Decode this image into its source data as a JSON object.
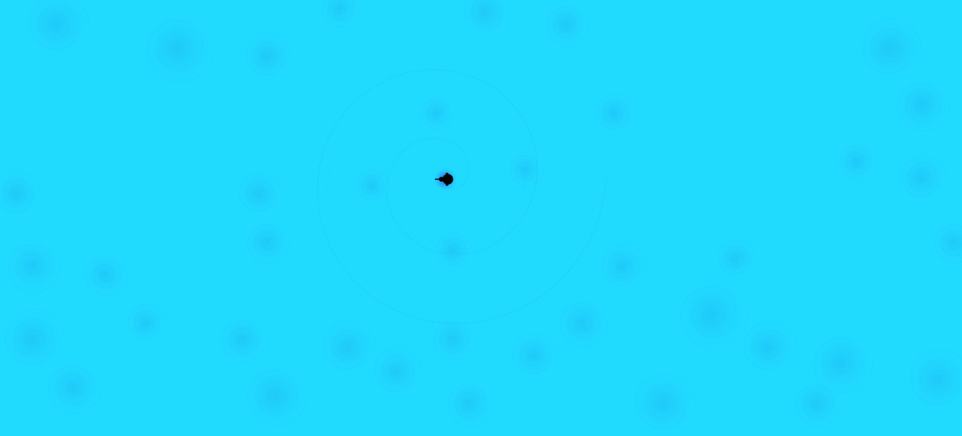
{
  "view": {
    "kind": "mandelbrot-zoom",
    "colors": {
      "background": "#21dbff",
      "filament": "#2ec8f6",
      "filament_dark": "#27bff0",
      "set_interior": "#000000",
      "halo": "#4a3cd8"
    }
  }
}
